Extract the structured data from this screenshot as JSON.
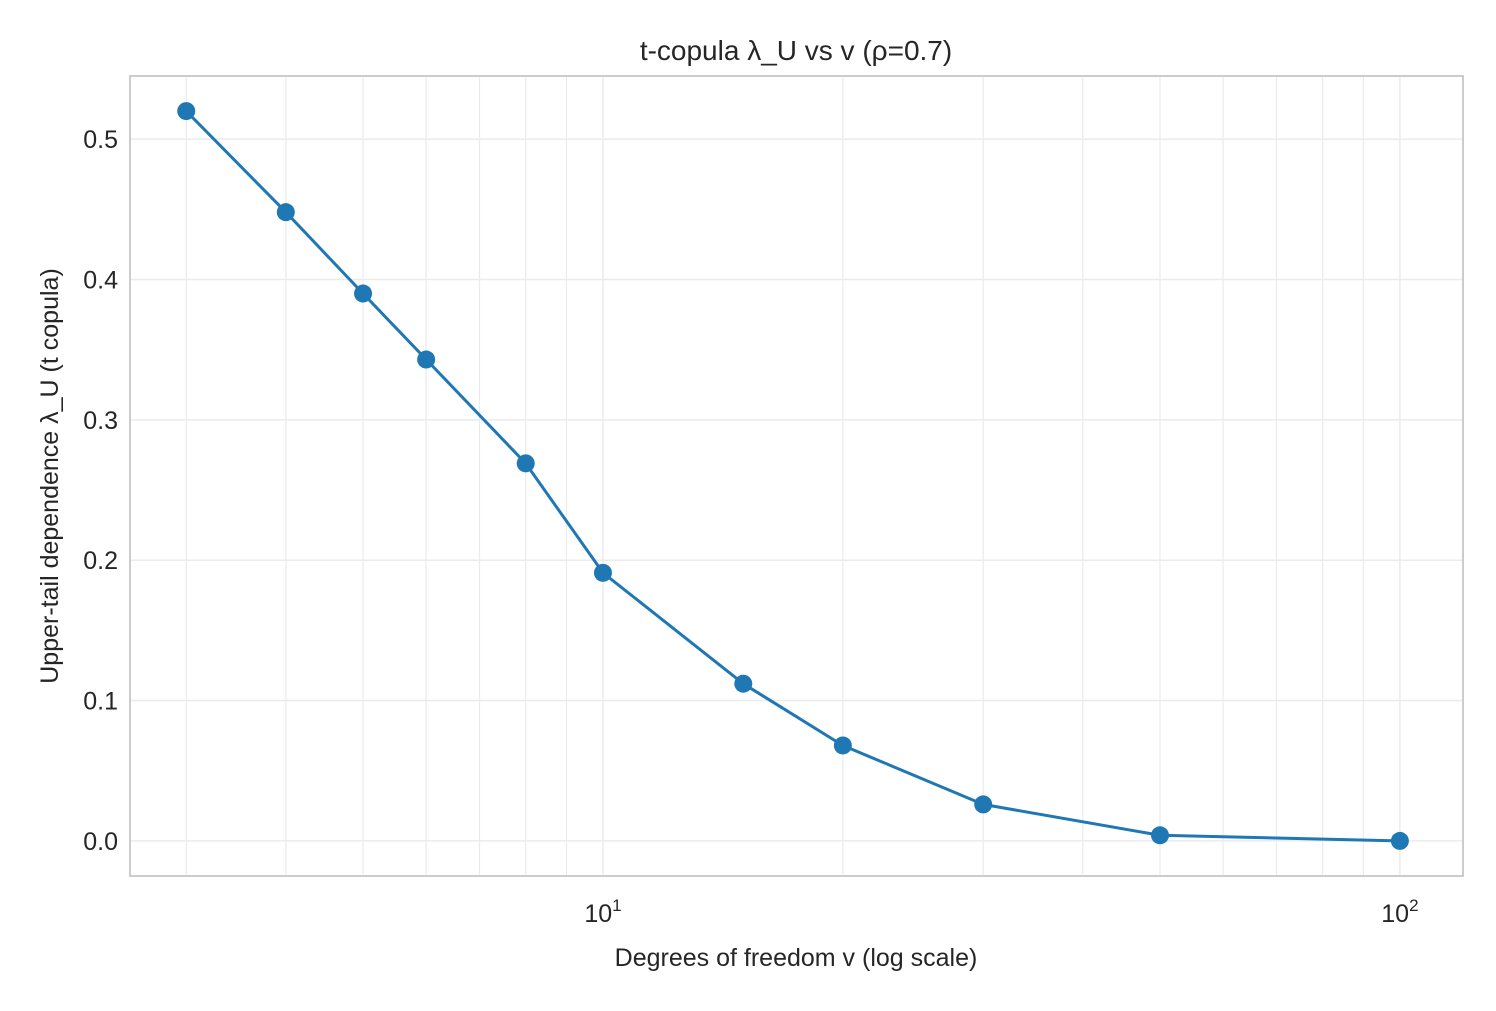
{
  "chart_data": {
    "type": "line",
    "title": "t-copula λ_U vs v (ρ=0.7)",
    "xlabel": "Degrees of freedom v (log scale)",
    "ylabel": "Upper-tail dependence λ_U (t copula)",
    "x_scale": "log",
    "xlim": [
      2.55,
      120
    ],
    "ylim": [
      -0.025,
      0.545
    ],
    "grid": true,
    "x_ticks": [
      {
        "value": 10,
        "base": "10",
        "exp": "1"
      },
      {
        "value": 100,
        "base": "10",
        "exp": "2"
      }
    ],
    "y_ticks": [
      {
        "value": 0.0,
        "label": "0.0"
      },
      {
        "value": 0.1,
        "label": "0.1"
      },
      {
        "value": 0.2,
        "label": "0.2"
      },
      {
        "value": 0.3,
        "label": "0.3"
      },
      {
        "value": 0.4,
        "label": "0.4"
      },
      {
        "value": 0.5,
        "label": "0.5"
      }
    ],
    "series": [
      {
        "color": "#1f77b4",
        "marker": "circle",
        "x": [
          3,
          4,
          5,
          6,
          8,
          10,
          15,
          20,
          30,
          50,
          100
        ],
        "y": [
          0.52,
          0.448,
          0.39,
          0.343,
          0.269,
          0.191,
          0.112,
          0.068,
          0.026,
          0.004,
          0.0
        ]
      }
    ]
  }
}
